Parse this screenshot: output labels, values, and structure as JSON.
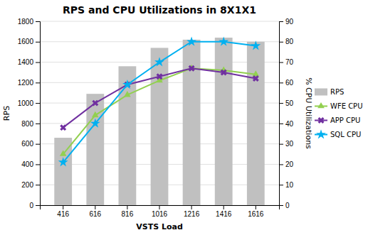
{
  "chart_data": {
    "type": "bar",
    "title": "RPS and CPU Utilizations in 8X1X1",
    "xlabel": "VSTS Load",
    "ylabel": "RPS",
    "y2label": "% CPU Utilizations",
    "categories": [
      "416",
      "616",
      "816",
      "1016",
      "1216",
      "1416",
      "1616"
    ],
    "series": [
      {
        "name": "RPS",
        "type": "bar",
        "color": "#c0c0c0",
        "values": [
          660,
          1090,
          1360,
          1540,
          1620,
          1640,
          1600
        ]
      },
      {
        "name": "WFE CPU",
        "type": "line",
        "axis": "y2",
        "color": "#92d050",
        "marker": "triangle",
        "values": [
          25,
          44,
          54,
          61,
          67,
          66,
          64
        ]
      },
      {
        "name": "APP CPU",
        "type": "line",
        "axis": "y2",
        "color": "#7030a0",
        "marker": "x",
        "values": [
          38,
          50,
          59,
          63,
          67,
          65,
          62
        ]
      },
      {
        "name": "SQL CPU",
        "type": "line",
        "axis": "y2",
        "color": "#00b0f0",
        "marker": "star",
        "values": [
          21,
          40,
          59,
          70,
          80,
          80,
          78
        ]
      }
    ],
    "ylim": [
      0,
      1800
    ],
    "yticks": [
      0,
      200,
      400,
      600,
      800,
      1000,
      1200,
      1400,
      1600,
      1800
    ],
    "y2lim": [
      0,
      90
    ],
    "y2ticks": [
      0,
      10,
      20,
      30,
      40,
      50,
      60,
      70,
      80,
      90
    ],
    "grid": true,
    "legend": "right"
  }
}
